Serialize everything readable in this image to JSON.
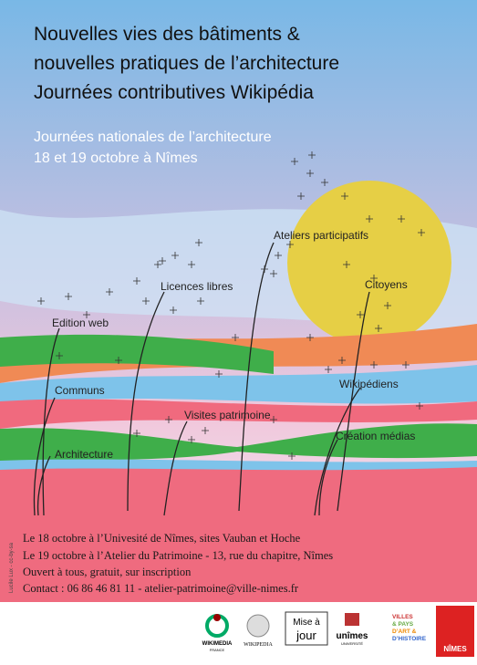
{
  "header": {
    "title_lines": [
      "Nouvelles vies des bâtiments &",
      "nouvelles pratiques de l’architecture",
      "Journées contributives Wikipédia"
    ],
    "subtitle_lines": [
      "Journées nationales de l’architecture",
      "18 et 19 octobre à Nîmes"
    ]
  },
  "labels": [
    "Ateliers participatifs",
    "Licences libres",
    "Citoyens",
    "Edition web",
    "Communs",
    "Wikipédiens",
    "Visites patrimoine",
    "Création médias",
    "Architecture"
  ],
  "info": [
    "Le 18 octobre à l’Univesité de Nîmes, sites Vauban et Hoche",
    "Le 19 octobre à l’Atelier du Patrimoine - 13, rue du chapitre, Nîmes",
    "Ouvert à tous, gratuit, sur inscription",
    "Contact : 06 86 46 81 11 - atelier-patrimoine@ville-nimes.fr"
  ],
  "credit": "Lucile Lux - cc-by-sa",
  "logos": {
    "wikimedia": [
      "WIKIMEDIA",
      "FRANCE"
    ],
    "wikipedia": "WIKIPEDIA",
    "miseajour": [
      "Mise à",
      "jour"
    ],
    "unimes": [
      "unîmes",
      "UNIVERSITÉ"
    ],
    "villes": [
      "VILLES",
      "& PAYS",
      "D’ART &",
      "D’HISTOIRE"
    ],
    "nimes": "NÎMES"
  }
}
